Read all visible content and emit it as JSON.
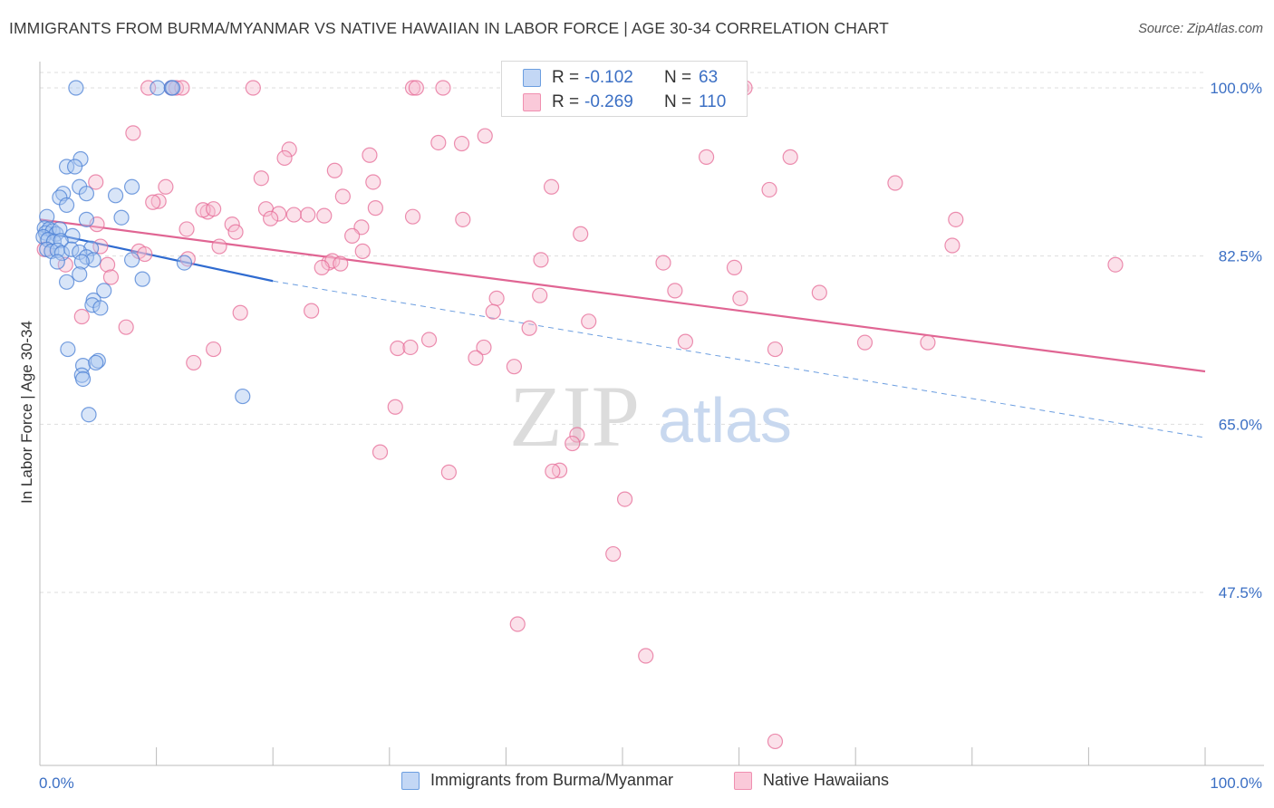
{
  "title": "IMMIGRANTS FROM BURMA/MYANMAR VS NATIVE HAWAIIAN IN LABOR FORCE | AGE 30-34 CORRELATION CHART",
  "source": "Source: ZipAtlas.com",
  "watermark": {
    "zip": "ZIP",
    "atlas": "atlas"
  },
  "legend": {
    "r_label": "R =",
    "n_label": "N =",
    "series": [
      {
        "r": "-0.102",
        "n": "63",
        "color": "#6c9ee0"
      },
      {
        "r": "-0.269",
        "n": "110",
        "color": "#f08fb0"
      }
    ]
  },
  "bottom_legend": [
    "Immigrants from Burma/Myanmar",
    "Native Hawaiians"
  ],
  "colors": {
    "blue": "#4a7fd4",
    "blue_fill": "#a9c6f0",
    "pink": "#e66a96",
    "pink_fill": "#f7bdd0",
    "tick_label": "#3b6fc4",
    "grid": "#dddddd"
  },
  "chart_data": {
    "type": "scatter",
    "title": "IMMIGRANTS FROM BURMA/MYANMAR VS NATIVE HAWAIIAN IN LABOR FORCE | AGE 30-34 CORRELATION CHART",
    "xlabel": "",
    "ylabel": "In Labor Force | Age 30-34",
    "xlim": [
      0,
      100
    ],
    "ylim": [
      31,
      103
    ],
    "x_tick_labels": [
      "0.0%",
      "100.0%"
    ],
    "y_ticks": [
      47.5,
      65.0,
      82.5,
      100.0
    ],
    "y_tick_labels": [
      "47.5%",
      "65.0%",
      "82.5%",
      "100.0%"
    ],
    "grid": true,
    "legend_placement": "top-center",
    "series": [
      {
        "name": "Immigrants from Burma/Myanmar",
        "r": -0.102,
        "n": 63,
        "trend": {
          "x": [
            0,
            20
          ],
          "y": [
            85.1,
            79.9
          ],
          "dashed_to": [
            100,
            63.6
          ]
        },
        "points": [
          [
            3.1,
            100.0
          ],
          [
            10.1,
            100.0
          ],
          [
            11.3,
            100.0
          ],
          [
            11.4,
            100.0
          ],
          [
            3.5,
            92.6
          ],
          [
            2.3,
            91.8
          ],
          [
            3.0,
            91.8
          ],
          [
            3.4,
            89.7
          ],
          [
            7.9,
            89.7
          ],
          [
            2.0,
            89.0
          ],
          [
            1.7,
            88.6
          ],
          [
            4.0,
            89.0
          ],
          [
            6.5,
            88.8
          ],
          [
            2.3,
            87.8
          ],
          [
            0.6,
            86.6
          ],
          [
            7.0,
            86.5
          ],
          [
            4.0,
            86.3
          ],
          [
            0.4,
            85.4
          ],
          [
            0.8,
            85.3
          ],
          [
            0.5,
            84.9
          ],
          [
            1.1,
            85.1
          ],
          [
            1.4,
            84.8
          ],
          [
            1.7,
            85.3
          ],
          [
            2.8,
            84.6
          ],
          [
            0.3,
            84.5
          ],
          [
            0.7,
            84.2
          ],
          [
            1.2,
            84.0
          ],
          [
            1.8,
            84.1
          ],
          [
            0.6,
            83.2
          ],
          [
            1.0,
            83.0
          ],
          [
            1.5,
            83.1
          ],
          [
            1.9,
            82.8
          ],
          [
            2.7,
            83.2
          ],
          [
            4.4,
            83.3
          ],
          [
            3.4,
            82.9
          ],
          [
            4.0,
            82.4
          ],
          [
            4.6,
            82.1
          ],
          [
            3.6,
            81.9
          ],
          [
            1.5,
            81.9
          ],
          [
            7.9,
            82.1
          ],
          [
            12.4,
            81.8
          ],
          [
            3.4,
            80.6
          ],
          [
            8.8,
            80.1
          ],
          [
            2.3,
            79.8
          ],
          [
            5.5,
            78.9
          ],
          [
            4.6,
            77.9
          ],
          [
            4.5,
            77.4
          ],
          [
            5.2,
            77.1
          ],
          [
            2.4,
            72.8
          ],
          [
            5.0,
            71.6
          ],
          [
            3.7,
            71.1
          ],
          [
            4.8,
            71.4
          ],
          [
            3.6,
            70.1
          ],
          [
            3.7,
            69.7
          ],
          [
            17.4,
            67.9
          ],
          [
            4.2,
            66.0
          ]
        ]
      },
      {
        "name": "Native Hawaiians",
        "r": -0.269,
        "n": 110,
        "trend": {
          "x": [
            0,
            100
          ],
          "y": [
            86.3,
            70.5
          ]
        },
        "points": [
          [
            9.3,
            100.0
          ],
          [
            11.3,
            100.0
          ],
          [
            11.7,
            100.0
          ],
          [
            12.2,
            100.0
          ],
          [
            18.3,
            100.0
          ],
          [
            32.0,
            100.0
          ],
          [
            32.3,
            100.0
          ],
          [
            34.6,
            100.0
          ],
          [
            60.2,
            100.0
          ],
          [
            60.5,
            100.0
          ],
          [
            47.2,
            98.4
          ],
          [
            8.0,
            95.3
          ],
          [
            38.2,
            95.0
          ],
          [
            34.2,
            94.3
          ],
          [
            36.2,
            94.2
          ],
          [
            21.4,
            93.6
          ],
          [
            21.0,
            92.7
          ],
          [
            28.3,
            93.0
          ],
          [
            57.2,
            92.8
          ],
          [
            64.4,
            92.8
          ],
          [
            25.3,
            91.4
          ],
          [
            19.0,
            90.6
          ],
          [
            4.8,
            90.2
          ],
          [
            28.6,
            90.2
          ],
          [
            73.4,
            90.1
          ],
          [
            43.9,
            89.7
          ],
          [
            10.8,
            89.7
          ],
          [
            62.6,
            89.4
          ],
          [
            26.0,
            88.7
          ],
          [
            10.2,
            88.2
          ],
          [
            9.7,
            88.1
          ],
          [
            28.8,
            87.5
          ],
          [
            19.4,
            87.4
          ],
          [
            14.4,
            87.1
          ],
          [
            14.0,
            87.3
          ],
          [
            14.9,
            87.4
          ],
          [
            20.5,
            86.9
          ],
          [
            21.8,
            86.8
          ],
          [
            23.0,
            86.8
          ],
          [
            24.4,
            86.7
          ],
          [
            32.0,
            86.6
          ],
          [
            19.8,
            86.4
          ],
          [
            36.3,
            86.3
          ],
          [
            78.6,
            86.3
          ],
          [
            4.9,
            85.8
          ],
          [
            16.5,
            85.8
          ],
          [
            27.6,
            85.5
          ],
          [
            12.6,
            85.3
          ],
          [
            16.8,
            85.0
          ],
          [
            46.4,
            84.8
          ],
          [
            26.8,
            84.6
          ],
          [
            0.4,
            83.2
          ],
          [
            15.4,
            83.5
          ],
          [
            5.2,
            83.5
          ],
          [
            8.5,
            83.0
          ],
          [
            9.0,
            82.7
          ],
          [
            27.7,
            83.0
          ],
          [
            78.3,
            83.6
          ],
          [
            12.7,
            82.2
          ],
          [
            24.8,
            81.8
          ],
          [
            25.1,
            82.0
          ],
          [
            25.8,
            81.7
          ],
          [
            43.0,
            82.1
          ],
          [
            53.5,
            81.8
          ],
          [
            2.2,
            81.6
          ],
          [
            5.8,
            81.6
          ],
          [
            24.2,
            81.3
          ],
          [
            59.6,
            81.3
          ],
          [
            92.3,
            81.6
          ],
          [
            6.1,
            80.3
          ],
          [
            54.5,
            78.9
          ],
          [
            66.9,
            78.7
          ],
          [
            42.9,
            78.4
          ],
          [
            39.2,
            78.1
          ],
          [
            60.1,
            78.1
          ],
          [
            23.3,
            76.8
          ],
          [
            17.2,
            76.6
          ],
          [
            38.9,
            76.7
          ],
          [
            3.6,
            76.2
          ],
          [
            47.1,
            75.7
          ],
          [
            7.4,
            75.1
          ],
          [
            42.0,
            75.0
          ],
          [
            33.4,
            73.8
          ],
          [
            55.4,
            73.6
          ],
          [
            70.8,
            73.5
          ],
          [
            76.2,
            73.5
          ],
          [
            30.7,
            72.9
          ],
          [
            31.8,
            73.0
          ],
          [
            38.1,
            73.0
          ],
          [
            14.9,
            72.8
          ],
          [
            63.1,
            72.8
          ],
          [
            37.4,
            71.9
          ],
          [
            13.2,
            71.4
          ],
          [
            40.7,
            71.0
          ],
          [
            30.5,
            66.8
          ],
          [
            46.1,
            63.9
          ],
          [
            45.7,
            63.0
          ],
          [
            29.2,
            62.1
          ],
          [
            35.1,
            60.0
          ],
          [
            44.6,
            60.2
          ],
          [
            44.0,
            60.1
          ],
          [
            50.2,
            57.2
          ],
          [
            49.2,
            51.5
          ],
          [
            41.0,
            44.2
          ],
          [
            52.0,
            40.9
          ],
          [
            63.1,
            32.0
          ]
        ]
      }
    ]
  }
}
